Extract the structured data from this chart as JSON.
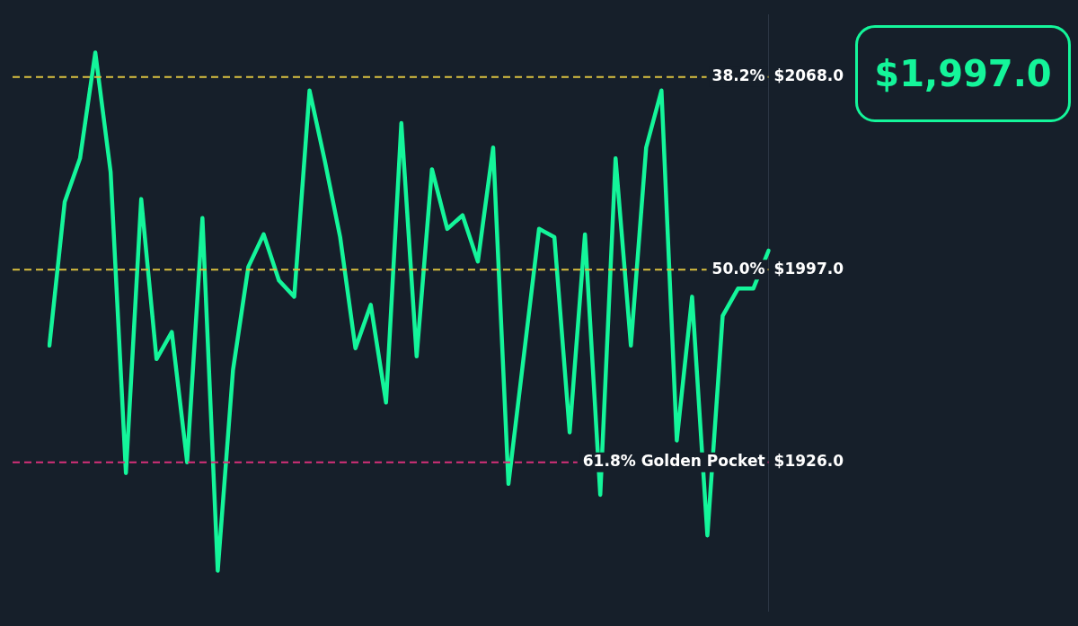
{
  "chart_data": {
    "type": "line",
    "categories": [
      null,
      null,
      null,
      null,
      null,
      null,
      null,
      null,
      null,
      null,
      null,
      null,
      null,
      null,
      null,
      null,
      null,
      null,
      null,
      null,
      null,
      null,
      null,
      null,
      null,
      null,
      null,
      null,
      null,
      null,
      null,
      null,
      null,
      null,
      null,
      null,
      null,
      null,
      null,
      null,
      null,
      null,
      null,
      null,
      null,
      null,
      null,
      null
    ],
    "series": [
      {
        "color": "#14f59a",
        "values": [
          1969,
          2022,
          2038,
          2077,
          2033,
          1922,
          2023,
          1964,
          1974,
          1926,
          2016,
          1886,
          1960,
          1998,
          2010,
          1993,
          1987,
          2063,
          2037,
          2009,
          1968,
          1984,
          1948,
          2051,
          1965,
          2034,
          2012,
          2017,
          2000,
          2042,
          1918,
          1965,
          2012,
          2009,
          1937,
          2010,
          1914,
          2038,
          1969,
          2042,
          2063,
          1934,
          1987,
          1899,
          1980,
          1990,
          1990,
          2004
        ]
      }
    ],
    "ylim": [
      1871,
      2091
    ],
    "yticks": [
      {
        "value": 2068,
        "label": "$2068.0"
      },
      {
        "value": 1997,
        "label": "$1997.0"
      },
      {
        "value": 1926,
        "label": "$1926.0"
      }
    ],
    "ref_lines": [
      {
        "axis": "y",
        "value": 2068,
        "color": "#d9c040",
        "line_style": "dashed"
      },
      {
        "axis": "y",
        "value": 1997,
        "color": "#d9c040",
        "line_style": "dashed"
      },
      {
        "axis": "y",
        "value": 1926,
        "color": "#d6307a",
        "line_style": "dashed"
      }
    ],
    "annotations": [
      "$1,997.0",
      "38.2%",
      "50.0%",
      "61.8% Golden Pocket"
    ],
    "tick_labels": "y",
    "grid": false,
    "legend": false,
    "marker": "none",
    "line_style": "solid"
  }
}
